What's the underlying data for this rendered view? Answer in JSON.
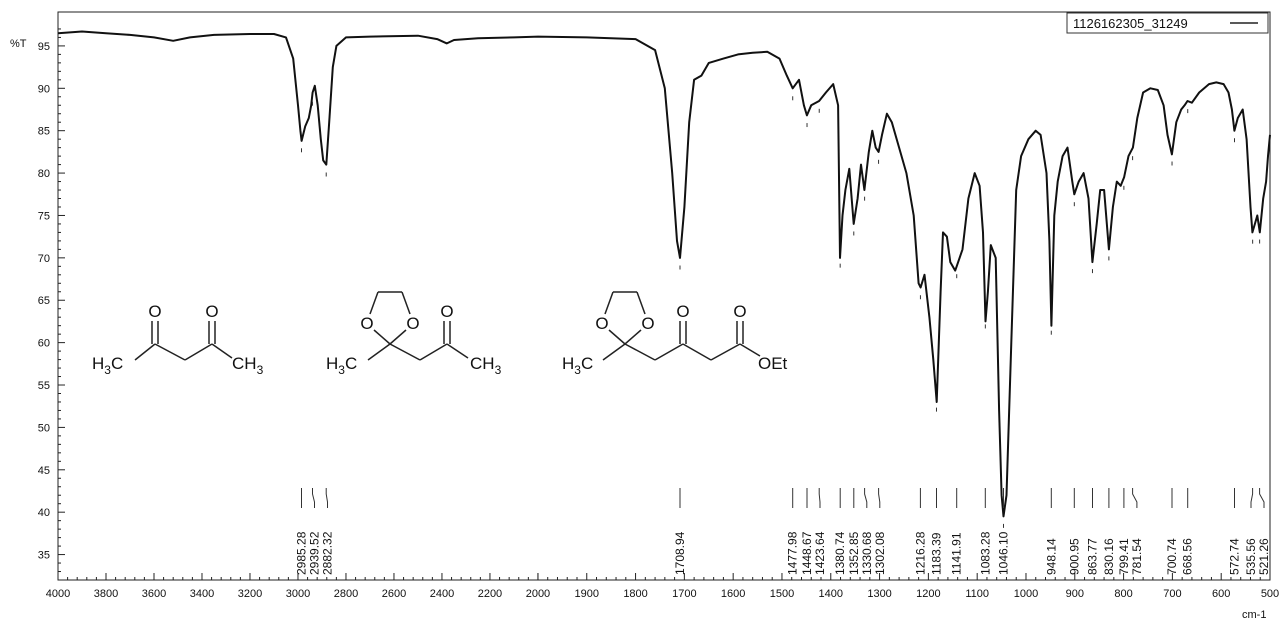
{
  "chart_data": {
    "type": "line",
    "legend": {
      "label": "1126162305_31249",
      "position": "top-right"
    },
    "ylabel": "%T",
    "xlabel": "cm-1",
    "xlim": [
      4000,
      500
    ],
    "ylim": [
      32,
      99
    ],
    "grid": false,
    "xticks": [
      4000,
      3800,
      3600,
      3400,
      3200,
      3000,
      2800,
      2600,
      2400,
      2200,
      2000,
      1900,
      1800,
      1700,
      1600,
      1500,
      1400,
      1300,
      1200,
      1100,
      1000,
      900,
      800,
      700,
      600,
      500
    ],
    "yticks": [
      35,
      40,
      45,
      50,
      55,
      60,
      65,
      70,
      75,
      80,
      85,
      90,
      95
    ],
    "axis_breaks": [
      {
        "x": 4000,
        "frac": 0.0
      },
      {
        "x": 2000,
        "frac": 0.396
      },
      {
        "x": 500,
        "frac": 1.0
      }
    ],
    "series": [
      {
        "points": [
          [
            4000,
            96.5
          ],
          [
            3900,
            96.7
          ],
          [
            3800,
            96.5
          ],
          [
            3700,
            96.3
          ],
          [
            3600,
            96.0
          ],
          [
            3520,
            95.6
          ],
          [
            3450,
            96.0
          ],
          [
            3350,
            96.3
          ],
          [
            3200,
            96.4
          ],
          [
            3100,
            96.4
          ],
          [
            3050,
            96.0
          ],
          [
            3020,
            93.5
          ],
          [
            3000,
            88.0
          ],
          [
            2990,
            85.0
          ],
          [
            2985,
            83.8
          ],
          [
            2970,
            85.5
          ],
          [
            2955,
            86.5
          ],
          [
            2945,
            88.0
          ],
          [
            2939,
            89.5
          ],
          [
            2930,
            90.3
          ],
          [
            2918,
            88.0
          ],
          [
            2905,
            84.0
          ],
          [
            2895,
            81.5
          ],
          [
            2882,
            81.0
          ],
          [
            2870,
            86.0
          ],
          [
            2855,
            92.5
          ],
          [
            2840,
            95.0
          ],
          [
            2800,
            96.0
          ],
          [
            2700,
            96.1
          ],
          [
            2500,
            96.2
          ],
          [
            2420,
            95.8
          ],
          [
            2380,
            95.3
          ],
          [
            2350,
            95.7
          ],
          [
            2250,
            95.9
          ],
          [
            2100,
            96.0
          ],
          [
            2000,
            96.1
          ],
          [
            1900,
            96.0
          ],
          [
            1800,
            95.8
          ],
          [
            1760,
            94.5
          ],
          [
            1740,
            90.0
          ],
          [
            1725,
            80.0
          ],
          [
            1715,
            72.0
          ],
          [
            1709,
            70.0
          ],
          [
            1700,
            76.0
          ],
          [
            1690,
            86.0
          ],
          [
            1680,
            91.0
          ],
          [
            1665,
            91.5
          ],
          [
            1650,
            93.0
          ],
          [
            1620,
            93.5
          ],
          [
            1590,
            94.0
          ],
          [
            1560,
            94.2
          ],
          [
            1530,
            94.3
          ],
          [
            1505,
            93.5
          ],
          [
            1490,
            91.5
          ],
          [
            1478,
            90.0
          ],
          [
            1465,
            91.0
          ],
          [
            1455,
            88.0
          ],
          [
            1449,
            86.8
          ],
          [
            1440,
            88.0
          ],
          [
            1424,
            88.5
          ],
          [
            1410,
            89.5
          ],
          [
            1395,
            90.5
          ],
          [
            1385,
            88.0
          ],
          [
            1381,
            70.0
          ],
          [
            1376,
            75.0
          ],
          [
            1370,
            78.0
          ],
          [
            1362,
            80.5
          ],
          [
            1353,
            74.0
          ],
          [
            1345,
            77.0
          ],
          [
            1338,
            81.0
          ],
          [
            1331,
            78.0
          ],
          [
            1322,
            82.5
          ],
          [
            1315,
            85.0
          ],
          [
            1308,
            83.0
          ],
          [
            1302,
            82.5
          ],
          [
            1295,
            84.5
          ],
          [
            1285,
            87.0
          ],
          [
            1275,
            86.0
          ],
          [
            1260,
            83.0
          ],
          [
            1245,
            80.0
          ],
          [
            1230,
            75.0
          ],
          [
            1220,
            67.0
          ],
          [
            1216,
            66.5
          ],
          [
            1208,
            68.0
          ],
          [
            1198,
            63.0
          ],
          [
            1190,
            58.0
          ],
          [
            1183,
            53.0
          ],
          [
            1175,
            66.0
          ],
          [
            1170,
            73.0
          ],
          [
            1162,
            72.5
          ],
          [
            1155,
            69.5
          ],
          [
            1145,
            68.5
          ],
          [
            1142,
            69.0
          ],
          [
            1130,
            71.0
          ],
          [
            1118,
            77.0
          ],
          [
            1105,
            80.0
          ],
          [
            1095,
            78.5
          ],
          [
            1088,
            73.0
          ],
          [
            1083,
            62.5
          ],
          [
            1078,
            66.0
          ],
          [
            1072,
            71.5
          ],
          [
            1062,
            70.0
          ],
          [
            1055,
            52.0
          ],
          [
            1050,
            42.0
          ],
          [
            1046,
            39.5
          ],
          [
            1040,
            42.0
          ],
          [
            1030,
            60.0
          ],
          [
            1020,
            78.0
          ],
          [
            1010,
            82.0
          ],
          [
            995,
            84.0
          ],
          [
            980,
            85.0
          ],
          [
            970,
            84.5
          ],
          [
            958,
            80.0
          ],
          [
            952,
            72.0
          ],
          [
            948,
            62.0
          ],
          [
            942,
            75.0
          ],
          [
            935,
            79.0
          ],
          [
            925,
            82.0
          ],
          [
            915,
            83.0
          ],
          [
            905,
            79.0
          ],
          [
            901,
            77.5
          ],
          [
            892,
            79.0
          ],
          [
            882,
            80.0
          ],
          [
            872,
            77.0
          ],
          [
            864,
            69.5
          ],
          [
            855,
            74.0
          ],
          [
            848,
            78.0
          ],
          [
            840,
            78.0
          ],
          [
            830,
            71.0
          ],
          [
            822,
            76.0
          ],
          [
            814,
            79.0
          ],
          [
            806,
            78.5
          ],
          [
            799,
            79.5
          ],
          [
            790,
            82.0
          ],
          [
            781,
            83.0
          ],
          [
            772,
            86.5
          ],
          [
            760,
            89.5
          ],
          [
            745,
            90.0
          ],
          [
            730,
            89.8
          ],
          [
            718,
            88.0
          ],
          [
            710,
            84.5
          ],
          [
            701,
            82.2
          ],
          [
            692,
            86.0
          ],
          [
            682,
            87.5
          ],
          [
            675,
            88.0
          ],
          [
            669,
            88.5
          ],
          [
            660,
            88.3
          ],
          [
            645,
            89.5
          ],
          [
            625,
            90.5
          ],
          [
            610,
            90.7
          ],
          [
            595,
            90.5
          ],
          [
            585,
            89.5
          ],
          [
            578,
            87.5
          ],
          [
            573,
            85.0
          ],
          [
            566,
            86.5
          ],
          [
            556,
            87.5
          ],
          [
            548,
            84.0
          ],
          [
            540,
            76.0
          ],
          [
            536,
            73.0
          ],
          [
            531,
            74.0
          ],
          [
            526,
            75.0
          ],
          [
            521,
            73.0
          ],
          [
            514,
            77.0
          ],
          [
            508,
            79.0
          ],
          [
            504,
            82.0
          ],
          [
            500,
            84.5
          ]
        ]
      }
    ],
    "peak_labels": [
      "2985.28",
      "2939.52",
      "2882.32",
      "1708.94",
      "1477.98",
      "1448.67",
      "1423.64",
      "1380.74",
      "1352.85",
      "1330.68",
      "1302.08",
      "1216.28",
      "1183.39",
      "1141.91",
      "1083.28",
      "1046.10",
      "948.14",
      "900.95",
      "863.77",
      "830.16",
      "799.41",
      "781.54",
      "700.74",
      "668.56",
      "572.74",
      "535.56",
      "521.26"
    ],
    "structures": [
      {
        "left": "H",
        "left_sub": "3",
        "left_tail": "C",
        "right": "CH",
        "right_sub": "3",
        "o1": "O",
        "o2": "O"
      },
      {
        "left": "H",
        "left_sub": "3",
        "left_tail": "C",
        "right": "CH",
        "right_sub": "3",
        "ring_o1": "O",
        "ring_o2": "O",
        "o": "O"
      },
      {
        "left": "H",
        "left_sub": "3",
        "left_tail": "C",
        "right": "OEt",
        "ring_o1": "O",
        "ring_o2": "O",
        "o1": "O",
        "o2": "O"
      }
    ]
  }
}
